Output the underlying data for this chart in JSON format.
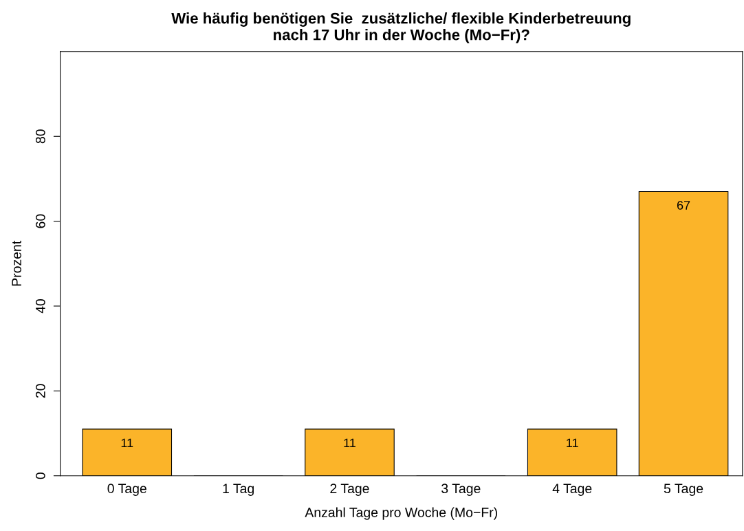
{
  "chart_data": {
    "type": "bar",
    "title": "Wie häufig benötigen Sie  zusätzliche/ flexible Kinderbetreuung\nnach 17 Uhr in der Woche (Mo−Fr)?",
    "xlabel": "Anzahl Tage pro Woche (Mo−Fr)",
    "ylabel": "Prozent",
    "categories": [
      "0 Tage",
      "1 Tag",
      "2 Tage",
      "3 Tage",
      "4 Tage",
      "5 Tage"
    ],
    "values": [
      11,
      0,
      11,
      0,
      11,
      67
    ],
    "value_labels": [
      "11",
      null,
      "11",
      null,
      "11",
      "67"
    ],
    "color": "#fbb429",
    "ylim": [
      0,
      100
    ],
    "yticks": [
      0,
      20,
      40,
      60,
      80
    ],
    "grid": false,
    "legend": false
  }
}
